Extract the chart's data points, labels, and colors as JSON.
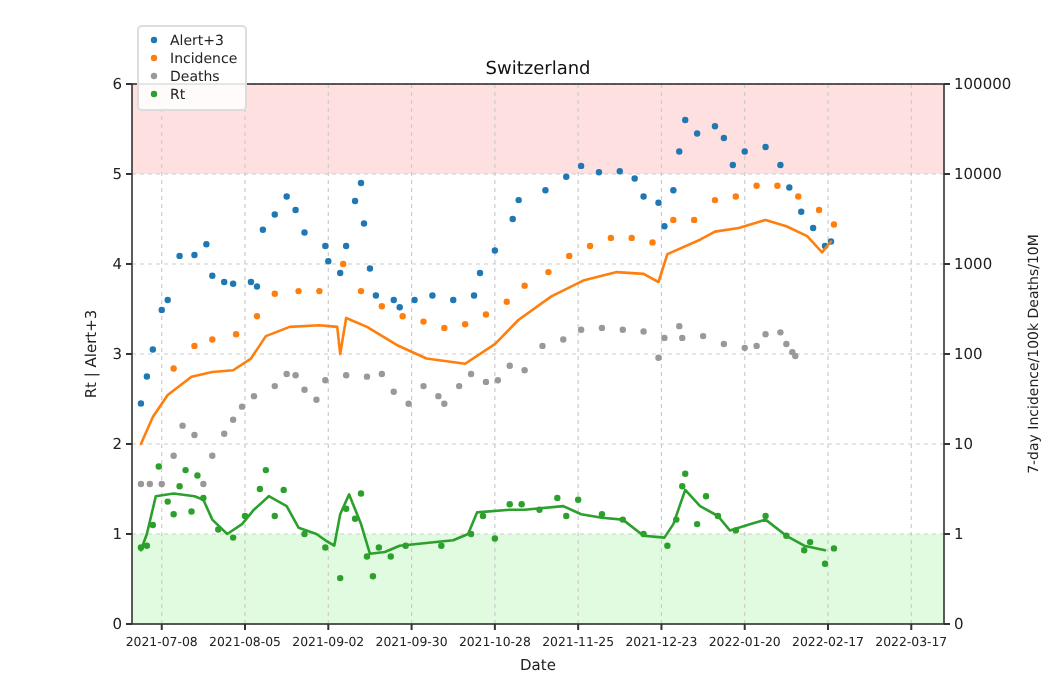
{
  "chart_data": {
    "type": "scatter",
    "title": "Switzerland",
    "xlabel": "Date",
    "ylabel": "Rt | Alert+3",
    "y2label": "7-day Incidence/100k Deaths/10M",
    "xlim": [
      "2021-06-28",
      "2022-03-28"
    ],
    "xticks": [
      "2021-07-08",
      "2021-08-05",
      "2021-09-02",
      "2021-09-30",
      "2021-10-28",
      "2021-11-25",
      "2021-12-23",
      "2022-01-20",
      "2022-02-17",
      "2022-03-17"
    ],
    "ylim": [
      0,
      6
    ],
    "yticks": [
      0,
      1,
      2,
      3,
      4,
      5,
      6
    ],
    "log": "y2",
    "y2lim": [
      0.1,
      100000
    ],
    "y2ticks": [
      {
        "value": 0.1,
        "label": "0"
      },
      1,
      10,
      100,
      1000,
      10000,
      100000
    ],
    "grid": true,
    "legend": "top left",
    "marker": "circle",
    "bands": [
      {
        "axis": "y",
        "from": 5,
        "to": 6,
        "color": "#ffe0e0"
      },
      {
        "axis": "y",
        "from": 0,
        "to": 1,
        "color": "#e0fbe0"
      }
    ],
    "series": [
      {
        "name": "Alert+3",
        "color": "#1f77b4",
        "x": [
          "2021-07-01",
          "2021-07-03",
          "2021-07-05",
          "2021-07-08",
          "2021-07-10",
          "2021-07-14",
          "2021-07-19",
          "2021-07-23",
          "2021-07-25",
          "2021-07-29",
          "2021-08-01",
          "2021-08-07",
          "2021-08-09",
          "2021-08-11",
          "2021-08-15",
          "2021-08-19",
          "2021-08-22",
          "2021-08-25",
          "2021-09-01",
          "2021-09-02",
          "2021-09-06",
          "2021-09-08",
          "2021-09-11",
          "2021-09-13",
          "2021-09-14",
          "2021-09-16",
          "2021-09-18",
          "2021-09-24",
          "2021-09-26",
          "2021-10-01",
          "2021-10-07",
          "2021-10-14",
          "2021-10-21",
          "2021-10-23",
          "2021-10-28",
          "2021-11-03",
          "2021-11-05",
          "2021-11-14",
          "2021-11-21",
          "2021-11-26",
          "2021-12-02",
          "2021-12-09",
          "2021-12-14",
          "2021-12-17",
          "2021-12-22",
          "2021-12-24",
          "2021-12-27",
          "2021-12-29",
          "2021-12-31",
          "2022-01-04",
          "2022-01-10",
          "2022-01-13",
          "2022-01-16",
          "2022-01-20",
          "2022-01-27",
          "2022-02-01",
          "2022-02-04",
          "2022-02-08",
          "2022-02-12",
          "2022-02-16",
          "2022-02-18"
        ],
        "values": [
          2.45,
          2.75,
          3.05,
          3.49,
          3.6,
          4.09,
          4.1,
          4.22,
          3.87,
          3.8,
          3.78,
          3.8,
          3.75,
          4.38,
          4.55,
          4.75,
          4.6,
          4.35,
          4.2,
          4.03,
          3.9,
          4.2,
          4.7,
          4.9,
          4.45,
          3.95,
          3.65,
          3.6,
          3.52,
          3.6,
          3.65,
          3.6,
          3.65,
          3.9,
          4.15,
          4.5,
          4.71,
          4.82,
          4.97,
          5.09,
          5.02,
          5.03,
          4.95,
          4.75,
          4.68,
          4.42,
          4.82,
          5.25,
          5.6,
          5.45,
          5.53,
          5.4,
          5.1,
          5.25,
          5.3,
          5.1,
          4.85,
          4.58,
          4.4,
          4.2,
          4.25
        ]
      },
      {
        "name": "Incidence",
        "axis": "y2",
        "color": "#ff7f0e",
        "x": [
          "2021-07-12",
          "2021-07-19",
          "2021-07-25",
          "2021-08-02",
          "2021-08-09",
          "2021-08-15",
          "2021-08-23",
          "2021-08-30",
          "2021-09-07",
          "2021-09-13",
          "2021-09-20",
          "2021-09-27",
          "2021-10-04",
          "2021-10-11",
          "2021-10-18",
          "2021-10-25",
          "2021-11-01",
          "2021-11-07",
          "2021-11-15",
          "2021-11-22",
          "2021-11-29",
          "2021-12-06",
          "2021-12-13",
          "2021-12-20",
          "2021-12-27",
          "2022-01-03",
          "2022-01-10",
          "2022-01-17",
          "2022-01-24",
          "2022-01-31",
          "2022-02-07",
          "2022-02-14",
          "2022-02-19"
        ],
        "values": [
          69,
          123,
          145,
          166,
          263,
          468,
          500,
          500,
          1000,
          500,
          339,
          263,
          229,
          195,
          214,
          275,
          380,
          575,
          813,
          1230,
          1585,
          1950,
          1950,
          1738,
          3090,
          3090,
          5130,
          5620,
          7410,
          7410,
          5620,
          3980,
          2750
        ]
      },
      {
        "type": "line",
        "marker": "none",
        "axis": "y2",
        "color": "#ff7f0e",
        "x": [
          "2021-07-01",
          "2021-07-05",
          "2021-07-10",
          "2021-07-18",
          "2021-07-25",
          "2021-08-01",
          "2021-08-07",
          "2021-08-12",
          "2021-08-20",
          "2021-08-30",
          "2021-09-05",
          "2021-09-06",
          "2021-09-08",
          "2021-09-15",
          "2021-09-25",
          "2021-10-05",
          "2021-10-18",
          "2021-10-28",
          "2021-11-05",
          "2021-11-16",
          "2021-11-27",
          "2021-12-08",
          "2021-12-17",
          "2021-12-22",
          "2021-12-25",
          "2022-01-05",
          "2022-01-10",
          "2022-01-18",
          "2022-01-27",
          "2022-02-03",
          "2022-02-10",
          "2022-02-15",
          "2022-02-18"
        ],
        "values": [
          10,
          20,
          35,
          56,
          63,
          66,
          89,
          158,
          200,
          209,
          200,
          100,
          251,
          200,
          126,
          89,
          78,
          129,
          240,
          437,
          661,
          813,
          776,
          631,
          1288,
          1862,
          2291,
          2512,
          3090,
          2630,
          2042,
          1349,
          1778
        ]
      },
      {
        "name": "Deaths",
        "axis": "y2",
        "color": "#999999",
        "x": [
          "2021-07-01",
          "2021-07-04",
          "2021-07-08",
          "2021-07-12",
          "2021-07-15",
          "2021-07-19",
          "2021-07-22",
          "2021-07-25",
          "2021-07-29",
          "2021-08-01",
          "2021-08-04",
          "2021-08-08",
          "2021-08-15",
          "2021-08-19",
          "2021-08-22",
          "2021-08-25",
          "2021-08-29",
          "2021-09-01",
          "2021-09-08",
          "2021-09-15",
          "2021-09-20",
          "2021-09-24",
          "2021-09-29",
          "2021-10-04",
          "2021-10-09",
          "2021-10-11",
          "2021-10-16",
          "2021-10-20",
          "2021-10-25",
          "2021-10-29",
          "2021-11-02",
          "2021-11-07",
          "2021-11-13",
          "2021-11-20",
          "2021-11-26",
          "2021-12-03",
          "2021-12-10",
          "2021-12-17",
          "2021-12-22",
          "2021-12-24",
          "2021-12-29",
          "2021-12-30",
          "2022-01-06",
          "2022-01-13",
          "2022-01-20",
          "2022-01-24",
          "2022-01-27",
          "2022-02-01",
          "2022-02-03",
          "2022-02-05",
          "2022-02-06"
        ],
        "values": [
          3.6,
          3.6,
          3.6,
          7.4,
          16,
          12.6,
          3.6,
          7.4,
          13,
          18.6,
          26,
          34,
          44,
          60,
          58,
          40,
          31,
          51,
          58,
          56,
          60,
          38,
          28,
          44,
          34,
          28,
          44,
          60,
          49,
          51,
          74,
          66,
          123,
          145,
          186,
          195,
          186,
          178,
          91,
          151,
          204,
          151,
          158,
          129,
          117,
          123,
          166,
          174,
          129,
          105,
          95
        ]
      },
      {
        "name": "Rt",
        "color": "#2ca02c",
        "x": [
          "2021-07-01",
          "2021-07-03",
          "2021-07-05",
          "2021-07-07",
          "2021-07-10",
          "2021-07-12",
          "2021-07-14",
          "2021-07-16",
          "2021-07-18",
          "2021-07-20",
          "2021-07-22",
          "2021-07-27",
          "2021-08-01",
          "2021-08-05",
          "2021-08-10",
          "2021-08-12",
          "2021-08-15",
          "2021-08-18",
          "2021-08-25",
          "2021-09-01",
          "2021-09-06",
          "2021-09-08",
          "2021-09-11",
          "2021-09-13",
          "2021-09-15",
          "2021-09-17",
          "2021-09-19",
          "2021-09-23",
          "2021-09-28",
          "2021-10-10",
          "2021-10-20",
          "2021-10-24",
          "2021-10-28",
          "2021-11-02",
          "2021-11-06",
          "2021-11-12",
          "2021-11-18",
          "2021-11-21",
          "2021-11-25",
          "2021-12-03",
          "2021-12-10",
          "2021-12-17",
          "2021-12-25",
          "2021-12-28",
          "2021-12-30",
          "2021-12-31",
          "2022-01-04",
          "2022-01-07",
          "2022-01-11",
          "2022-01-17",
          "2022-01-27",
          "2022-02-03",
          "2022-02-09",
          "2022-02-11",
          "2022-02-16",
          "2022-02-19"
        ],
        "values": [
          0.85,
          0.87,
          1.1,
          1.75,
          1.36,
          1.22,
          1.53,
          1.71,
          1.25,
          1.65,
          1.4,
          1.05,
          0.96,
          1.2,
          1.5,
          1.71,
          1.2,
          1.49,
          1.0,
          0.85,
          0.51,
          1.28,
          1.17,
          1.45,
          0.75,
          0.53,
          0.85,
          0.75,
          0.87,
          0.87,
          1.0,
          1.2,
          0.95,
          1.33,
          1.33,
          1.27,
          1.4,
          1.2,
          1.38,
          1.22,
          1.16,
          1.0,
          0.87,
          1.16,
          1.53,
          1.67,
          1.11,
          1.42,
          1.2,
          1.04,
          1.2,
          0.98,
          0.82,
          0.91,
          0.67,
          0.84
        ]
      },
      {
        "type": "line",
        "marker": "none",
        "color": "#2ca02c",
        "x": [
          "2021-07-01",
          "2021-07-03",
          "2021-07-06",
          "2021-07-12",
          "2021-07-19",
          "2021-07-22",
          "2021-07-25",
          "2021-07-30",
          "2021-08-04",
          "2021-08-08",
          "2021-08-13",
          "2021-08-19",
          "2021-08-23",
          "2021-08-29",
          "2021-09-01",
          "2021-09-04",
          "2021-09-06",
          "2021-09-09",
          "2021-09-13",
          "2021-09-16",
          "2021-09-21",
          "2021-09-26",
          "2021-10-05",
          "2021-10-14",
          "2021-10-19",
          "2021-10-22",
          "2021-11-02",
          "2021-11-07",
          "2021-11-20",
          "2021-11-26",
          "2021-12-03",
          "2021-12-10",
          "2021-12-17",
          "2021-12-24",
          "2021-12-27",
          "2021-12-31",
          "2022-01-05",
          "2022-01-11",
          "2022-01-15",
          "2022-01-22",
          "2022-01-27",
          "2022-02-03",
          "2022-02-09",
          "2022-02-16"
        ],
        "values": [
          0.82,
          1.0,
          1.42,
          1.45,
          1.42,
          1.38,
          1.16,
          1.0,
          1.11,
          1.27,
          1.42,
          1.31,
          1.07,
          1.0,
          0.93,
          0.87,
          1.22,
          1.44,
          1.11,
          0.78,
          0.8,
          0.87,
          0.9,
          0.93,
          1.0,
          1.24,
          1.27,
          1.27,
          1.31,
          1.22,
          1.18,
          1.16,
          0.98,
          0.96,
          1.11,
          1.49,
          1.31,
          1.2,
          1.04,
          1.11,
          1.16,
          0.98,
          0.87,
          0.82
        ]
      }
    ]
  }
}
